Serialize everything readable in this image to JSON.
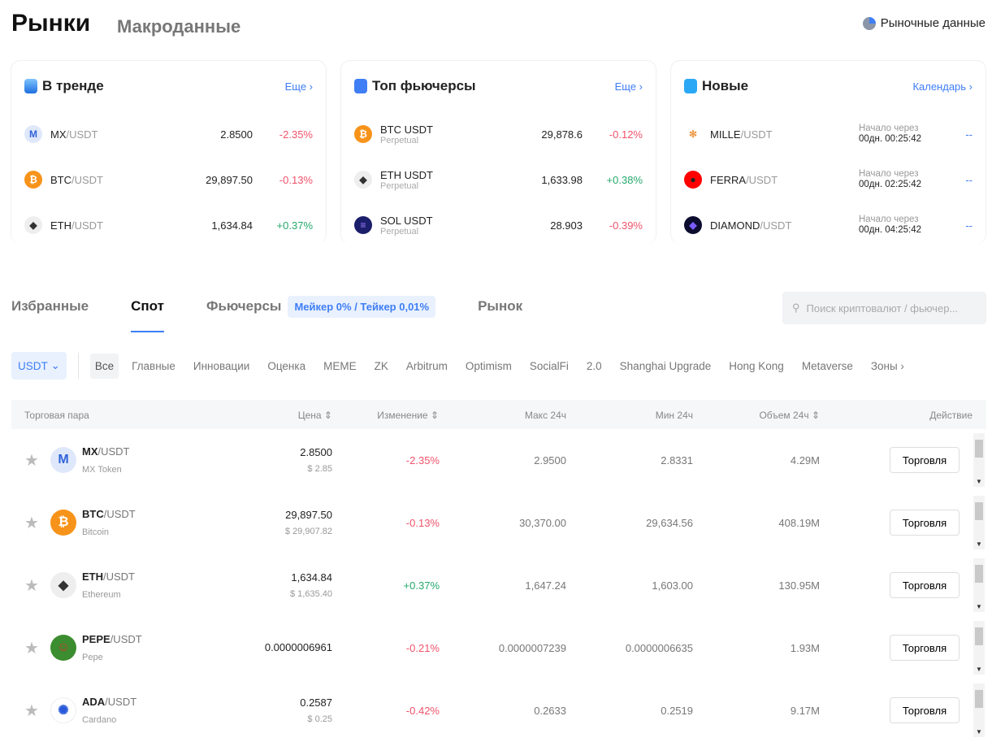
{
  "header": {
    "title": "Рынки",
    "subtitle": "Макроданные",
    "market_data": "Рыночные данные"
  },
  "cards": [
    {
      "title": "В тренде",
      "link": "Еще ›",
      "rows": [
        {
          "base": "MX",
          "quote": "/USDT",
          "price": "2.8500",
          "change": "-2.35%",
          "dir": "red",
          "icon": "M",
          "color": "#dfe8fb",
          "fg": "#2f63d8"
        },
        {
          "base": "BTC",
          "quote": "/USDT",
          "price": "29,897.50",
          "change": "-0.13%",
          "dir": "red",
          "icon": "₿",
          "color": "#f7931a",
          "fg": "#fff"
        },
        {
          "base": "ETH",
          "quote": "/USDT",
          "price": "1,634.84",
          "change": "+0.37%",
          "dir": "green",
          "icon": "◆",
          "color": "#eee",
          "fg": "#333"
        }
      ]
    },
    {
      "title": "Топ фьючерсы",
      "link": "Еще ›",
      "rows": [
        {
          "base": "BTC USDT",
          "quote": "",
          "sub": "Perpetual",
          "price": "29,878.6",
          "change": "-0.12%",
          "dir": "red",
          "icon": "₿",
          "color": "#f7931a",
          "fg": "#fff"
        },
        {
          "base": "ETH USDT",
          "quote": "",
          "sub": "Perpetual",
          "price": "1,633.98",
          "change": "+0.38%",
          "dir": "green",
          "icon": "◆",
          "color": "#eee",
          "fg": "#333"
        },
        {
          "base": "SOL USDT",
          "quote": "",
          "sub": "Perpetual",
          "price": "28.903",
          "change": "-0.39%",
          "dir": "red",
          "icon": "≡",
          "color": "#1b1e6b",
          "fg": "#9f7bff"
        }
      ]
    },
    {
      "title": "Новые",
      "link": "Календарь ›",
      "rows": [
        {
          "base": "MILLE",
          "quote": "/USDT",
          "label": "Начало через",
          "time": "00дн. 00:25:42",
          "value": "--",
          "icon": "✻",
          "color": "#fff",
          "fg": "#e94"
        },
        {
          "base": "FERRA",
          "quote": "/USDT",
          "label": "Начало через",
          "time": "00дн. 02:25:42",
          "value": "--",
          "icon": "●",
          "color": "#f00",
          "fg": "#222"
        },
        {
          "base": "DIAMOND",
          "quote": "/USDT",
          "label": "Начало через",
          "time": "00дн. 04:25:42",
          "value": "--",
          "icon": "◆",
          "color": "#0c0c2e",
          "fg": "#7a5cff"
        }
      ]
    }
  ],
  "tabs": [
    "Избранные",
    "Спот",
    "Фьючерсы",
    "Рынок"
  ],
  "fee_badge": "Мейкер 0% / Тейкер 0,01%",
  "search": {
    "placeholder": "Поиск криптовалют / фьючер..."
  },
  "quote_select": "USDT",
  "filters": [
    "Все",
    "Главные",
    "Инновации",
    "Оценка",
    "MEME",
    "ZK",
    "Arbitrum",
    "Optimism",
    "SocialFi",
    "2.0",
    "Shanghai Upgrade",
    "Hong Kong",
    "Metaverse",
    "Зоны ›"
  ],
  "table": {
    "headers": [
      "Торговая пара",
      "Цена ⇕",
      "Изменение ⇕",
      "Макс 24ч",
      "Мин 24ч",
      "Объем 24ч ⇕",
      "Действие"
    ],
    "trade_label": "Торговля",
    "rows": [
      {
        "base": "MX",
        "quote": "/USDT",
        "name": "MX Token",
        "price": "2.8500",
        "usd": "$ 2.85",
        "change": "-2.35%",
        "dir": "red",
        "high": "2.9500",
        "low": "2.8331",
        "vol": "4.29M",
        "icon": "M",
        "color": "#dfe8fb",
        "fg": "#2f63d8"
      },
      {
        "base": "BTC",
        "quote": "/USDT",
        "name": "Bitcoin",
        "price": "29,897.50",
        "usd": "$ 29,907.82",
        "change": "-0.13%",
        "dir": "red",
        "high": "30,370.00",
        "low": "29,634.56",
        "vol": "408.19M",
        "icon": "₿",
        "color": "#f7931a",
        "fg": "#fff"
      },
      {
        "base": "ETH",
        "quote": "/USDT",
        "name": "Ethereum",
        "price": "1,634.84",
        "usd": "$ 1,635.40",
        "change": "+0.37%",
        "dir": "green",
        "high": "1,647.24",
        "low": "1,603.00",
        "vol": "130.95M",
        "icon": "◆",
        "color": "#eee",
        "fg": "#333"
      },
      {
        "base": "PEPE",
        "quote": "/USDT",
        "name": "Pepe",
        "price": "0.0000006961",
        "usd": "",
        "change": "-0.21%",
        "dir": "red",
        "high": "0.0000007239",
        "low": "0.0000006635",
        "vol": "1.93M",
        "icon": "☺",
        "color": "#3c8d2f",
        "fg": "#c33"
      },
      {
        "base": "ADA",
        "quote": "/USDT",
        "name": "Cardano",
        "price": "0.2587",
        "usd": "$ 0.25",
        "change": "-0.42%",
        "dir": "red",
        "high": "0.2633",
        "low": "0.2519",
        "vol": "9.17M",
        "icon": "✺",
        "color": "#fff",
        "fg": "#2a5ada"
      }
    ]
  }
}
